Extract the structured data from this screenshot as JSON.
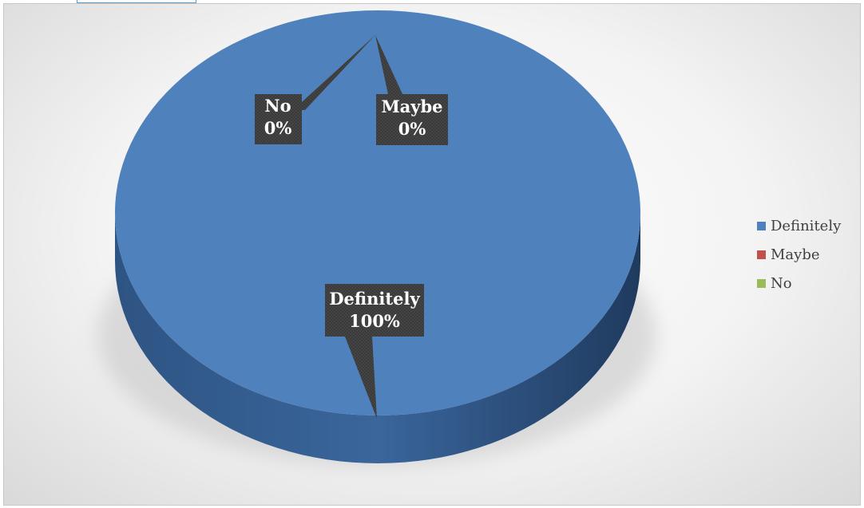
{
  "chart_data": {
    "type": "pie",
    "style": "3d",
    "categories": [
      "Definitely",
      "Maybe",
      "No"
    ],
    "values": [
      100,
      0,
      0
    ],
    "data_labels": [
      {
        "category": "Definitely",
        "value": "100%"
      },
      {
        "category": "Maybe",
        "value": "0%"
      },
      {
        "category": "No",
        "value": "0%"
      }
    ],
    "colors": [
      "#4f81bd",
      "#c0504d",
      "#9bbb59"
    ],
    "legend_position": "right",
    "title": ""
  }
}
